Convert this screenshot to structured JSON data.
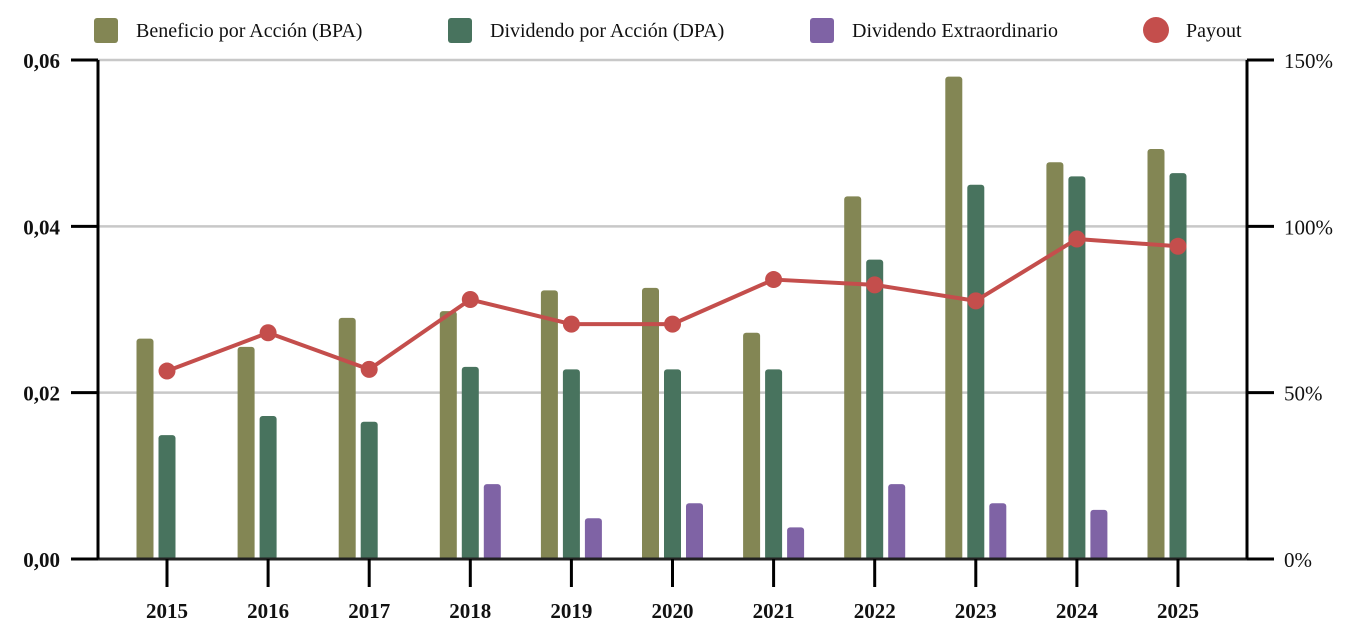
{
  "chart_data": {
    "type": "bar",
    "title": "",
    "xlabel": "",
    "ylabel": "",
    "y2label": "",
    "categories": [
      "2015",
      "2016",
      "2017",
      "2018",
      "2019",
      "2020",
      "2021",
      "2022",
      "2023",
      "2024",
      "2025"
    ],
    "series": [
      {
        "name": "Beneficio por Acción (BPA)",
        "type": "bar",
        "axis": "left",
        "color": "#838654",
        "values": [
          0.0265,
          0.0255,
          0.029,
          0.0298,
          0.0323,
          0.0326,
          0.0272,
          0.0436,
          0.058,
          0.0477,
          0.0493
        ]
      },
      {
        "name": "Dividendo por Acción (DPA)",
        "type": "bar",
        "axis": "left",
        "color": "#48735e",
        "values": [
          0.0149,
          0.0172,
          0.0165,
          0.0231,
          0.0228,
          0.0228,
          0.0228,
          0.036,
          0.045,
          0.046,
          0.0464
        ]
      },
      {
        "name": "Dividendo Extraordinario",
        "type": "bar",
        "axis": "left",
        "color": "#7f63a5",
        "values": [
          0,
          0,
          0,
          0.009,
          0.0049,
          0.0067,
          0.0038,
          0.009,
          0.0067,
          0.0059,
          0
        ]
      },
      {
        "name": "Payout",
        "type": "line",
        "axis": "right",
        "color": "#c44e4c",
        "unit": "%",
        "values": [
          56.5,
          68,
          57,
          78,
          70.6,
          70.6,
          84,
          82.4,
          77.6,
          96.2,
          94
        ]
      }
    ],
    "y_left": {
      "ylim": [
        0,
        0.06
      ],
      "ticks": [
        0,
        0.02,
        0.04,
        0.06
      ],
      "tick_labels": [
        "0,00",
        "0,02",
        "0,04",
        "0,06"
      ]
    },
    "y_right": {
      "ylim": [
        0,
        150
      ],
      "ticks": [
        0,
        50,
        100,
        150
      ],
      "tick_labels": [
        "0%",
        "50%",
        "100%",
        "150%"
      ]
    },
    "grid": true,
    "legend_position": "top",
    "legend": [
      {
        "label": "Beneficio por Acción (BPA)",
        "shape": "square",
        "color": "#838654"
      },
      {
        "label": "Dividendo por Acción (DPA)",
        "shape": "square",
        "color": "#48735e"
      },
      {
        "label": "Dividendo Extraordinario",
        "shape": "square",
        "color": "#7f63a5"
      },
      {
        "label": "Payout",
        "shape": "circle",
        "color": "#c44e4c"
      }
    ]
  },
  "colors": {
    "grid": "#c8c8c8",
    "axis": "#000000",
    "baseline": "#222222"
  }
}
